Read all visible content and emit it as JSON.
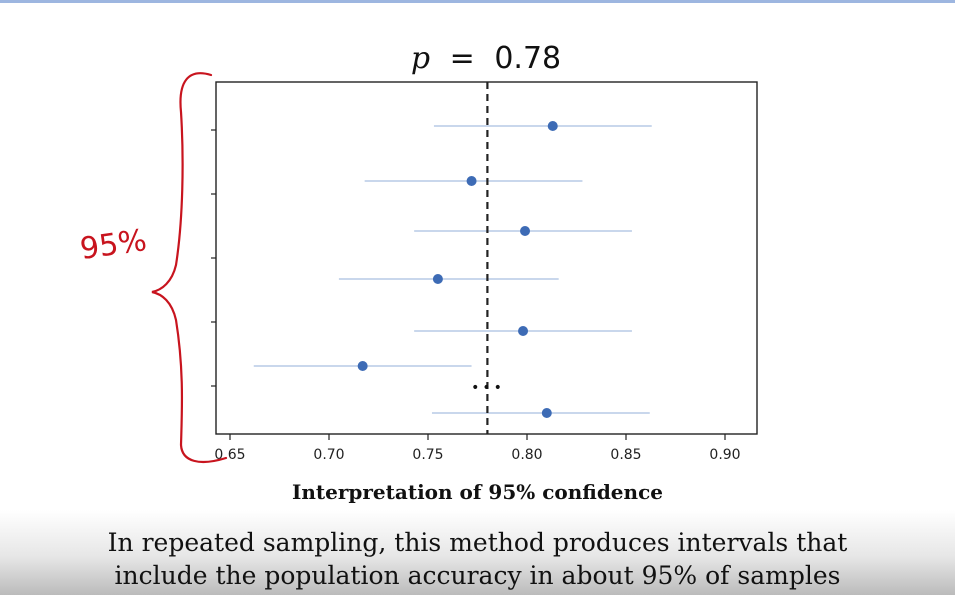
{
  "colors": {
    "accent": "#9db6e0",
    "marker": "#3d6bb5",
    "interval_line": "#a9bfe0",
    "reference_line": "#222222",
    "annotation_ink": "#c8141e"
  },
  "chart_data": {
    "type": "scatter",
    "title": "p = 0.78",
    "title_parts": {
      "variable": "p",
      "equals": "=",
      "value": "0.78"
    },
    "xlabel": "Interpretation of 95% confidence",
    "ylabel": "",
    "xlim": [
      0.65,
      0.92
    ],
    "x_ticks": [
      "0.65",
      "0.70",
      "0.75",
      "0.80",
      "0.85",
      "0.90"
    ],
    "x_tick_values": [
      0.65,
      0.7,
      0.75,
      0.8,
      0.85,
      0.9
    ],
    "reference_line": {
      "x": 0.78,
      "style": "dashed"
    },
    "grid": false,
    "legend": "none",
    "intervals": [
      {
        "estimate": 0.813,
        "lower": 0.753,
        "upper": 0.863
      },
      {
        "estimate": 0.772,
        "lower": 0.718,
        "upper": 0.828
      },
      {
        "estimate": 0.799,
        "lower": 0.743,
        "upper": 0.853
      },
      {
        "estimate": 0.755,
        "lower": 0.705,
        "upper": 0.816
      },
      {
        "estimate": 0.798,
        "lower": 0.743,
        "upper": 0.853
      },
      {
        "estimate": 0.717,
        "lower": 0.662,
        "upper": 0.772
      },
      {
        "estimate": 0.81,
        "lower": 0.752,
        "upper": 0.862
      }
    ],
    "ellipsis": "•••"
  },
  "annotation": {
    "handwritten_text": "95%",
    "brace": true
  },
  "caption": {
    "title": "Interpretation of 95% confidence",
    "line1": "In repeated sampling, this method produces intervals that",
    "line2": "include the population accuracy in about 95% of samples"
  }
}
